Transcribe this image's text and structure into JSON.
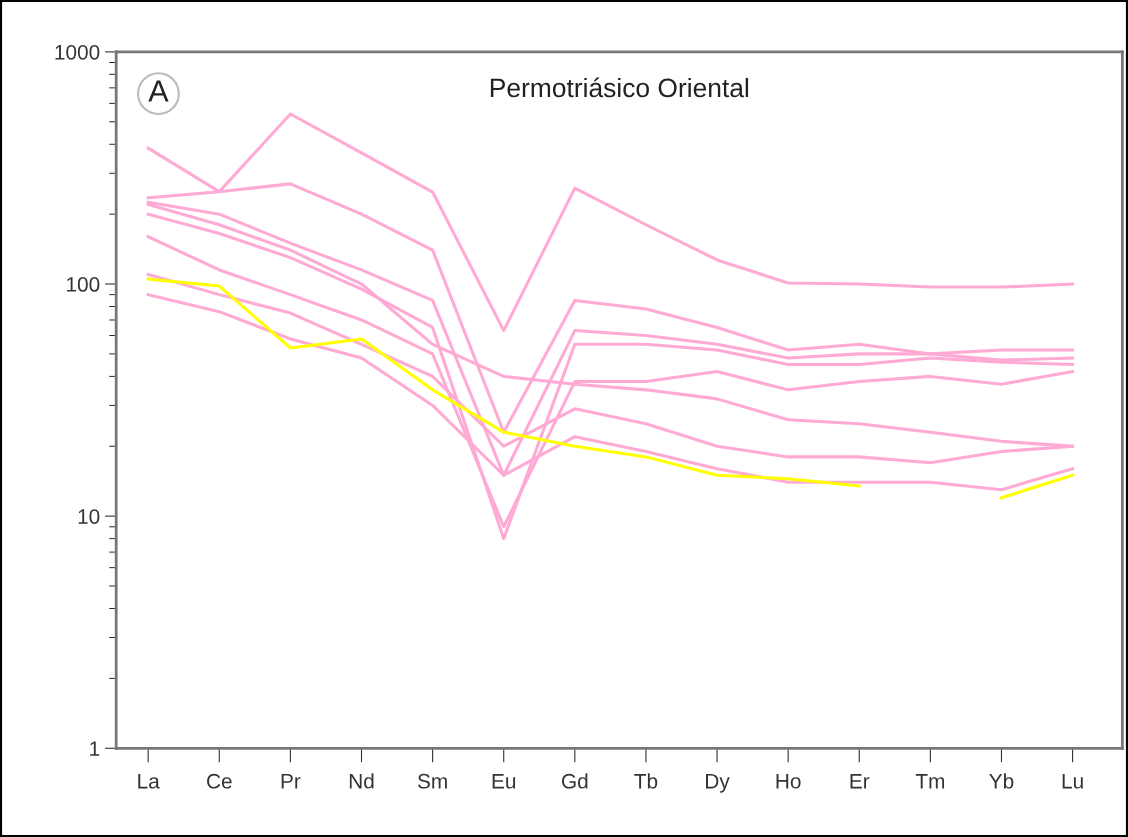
{
  "chart_data": {
    "type": "line",
    "title": "Permotriásico Oriental",
    "annotations": [
      "A"
    ],
    "categories": [
      "La",
      "Ce",
      "Pr",
      "Nd",
      "Sm",
      "Eu",
      "Gd",
      "Tb",
      "Dy",
      "Ho",
      "Er",
      "Tm",
      "Yb",
      "Lu"
    ],
    "log": "y",
    "ylim": [
      1,
      1000
    ],
    "yticks": [
      1,
      10,
      100,
      1000
    ],
    "marker": "none",
    "line_style": "solid",
    "series": [
      {
        "color": "#ffaad4",
        "values": [
          385,
          250,
          540,
          367,
          249,
          63,
          259,
          180,
          127,
          101,
          100,
          97,
          97,
          100
        ]
      },
      {
        "color": "#ffaad4",
        "values": [
          235,
          250,
          270,
          200,
          140,
          23,
          85,
          78,
          65,
          52,
          55,
          50,
          52,
          52
        ]
      },
      {
        "color": "#ffaad4",
        "values": [
          225,
          200,
          150,
          115,
          85,
          15,
          63,
          60,
          55,
          48,
          50,
          50,
          47,
          48
        ]
      },
      {
        "color": "#ffaad4",
        "values": [
          200,
          165,
          130,
          95,
          65,
          8,
          55,
          55,
          52,
          45,
          45,
          48,
          46,
          45
        ]
      },
      {
        "color": "#ffaad4",
        "values": [
          160,
          115,
          90,
          70,
          50,
          9,
          38,
          38,
          42,
          35,
          38,
          40,
          37,
          42
        ]
      },
      {
        "color": "#ffaad4",
        "values": [
          220,
          180,
          140,
          100,
          55,
          40,
          37,
          35,
          32,
          26,
          25,
          23,
          21,
          20
        ]
      },
      {
        "color": "#ffaad4",
        "values": [
          110,
          90,
          75,
          55,
          40,
          20,
          29,
          25,
          20,
          18,
          18,
          17,
          19,
          20
        ]
      },
      {
        "color": "#ffaad4",
        "values": [
          90,
          76,
          58,
          48,
          30,
          15,
          22,
          19,
          16,
          14,
          14,
          14,
          13,
          16
        ]
      },
      {
        "color": "#ffff00",
        "values": [
          105,
          98,
          53,
          58,
          35,
          23,
          20,
          18,
          15,
          14.5,
          13.5,
          null,
          12,
          15
        ]
      }
    ]
  }
}
